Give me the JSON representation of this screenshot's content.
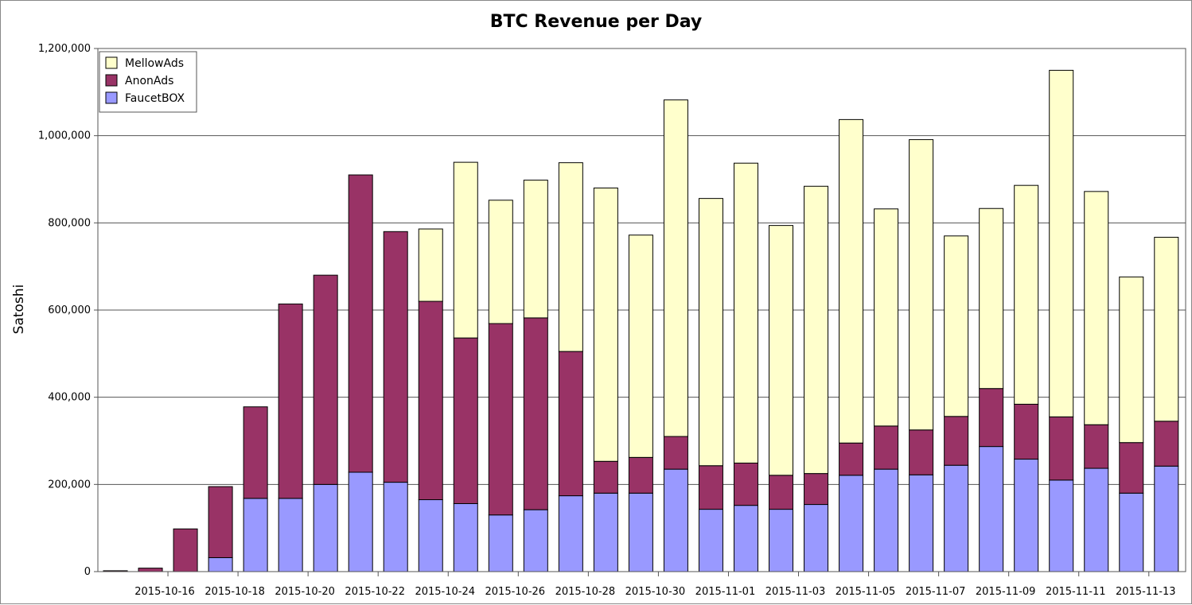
{
  "chart_data": {
    "type": "bar",
    "stacked": true,
    "title": "BTC Revenue per Day",
    "xlabel": "",
    "ylabel": "Satoshi",
    "ylim": [
      0,
      1200000
    ],
    "yticks": [
      0,
      200000,
      400000,
      600000,
      800000,
      1000000,
      1200000
    ],
    "ytick_labels": [
      "0",
      "200,000",
      "400,000",
      "600,000",
      "800,000",
      "1,000,000",
      "1,200,000"
    ],
    "grid": true,
    "legend_position": "top-left",
    "categories": [
      "2015-10-15",
      "2015-10-16",
      "2015-10-17",
      "2015-10-18",
      "2015-10-19",
      "2015-10-20",
      "2015-10-21",
      "2015-10-22",
      "2015-10-23",
      "2015-10-24",
      "2015-10-25",
      "2015-10-26",
      "2015-10-27",
      "2015-10-28",
      "2015-10-29",
      "2015-10-30",
      "2015-10-31",
      "2015-11-01",
      "2015-11-02",
      "2015-11-03",
      "2015-11-04",
      "2015-11-05",
      "2015-11-06",
      "2015-11-07",
      "2015-11-08",
      "2015-11-09",
      "2015-11-10",
      "2015-11-11",
      "2015-11-12",
      "2015-11-13",
      "2015-11-14"
    ],
    "x_tick_labels": [
      "2015-10-16",
      "2015-10-18",
      "2015-10-20",
      "2015-10-22",
      "2015-10-24",
      "2015-10-26",
      "2015-10-28",
      "2015-10-30",
      "2015-11-01",
      "2015-11-03",
      "2015-11-05",
      "2015-11-07",
      "2015-11-09",
      "2015-11-11",
      "2015-11-13"
    ],
    "series": [
      {
        "name": "FaucetBOX",
        "color": "#9999ff",
        "values": [
          0,
          0,
          0,
          32000,
          168000,
          168000,
          200000,
          228000,
          205000,
          165000,
          156000,
          130000,
          142000,
          174000,
          180000,
          180000,
          235000,
          143000,
          152000,
          143000,
          154000,
          221000,
          235000,
          222000,
          244000,
          287000,
          258000,
          210000,
          237000,
          180000,
          242000
        ]
      },
      {
        "name": "AnonAds",
        "color": "#993366",
        "values": [
          2000,
          8000,
          98000,
          163000,
          210000,
          446000,
          480000,
          682000,
          575000,
          455000,
          380000,
          439000,
          440000,
          331000,
          73000,
          82000,
          75000,
          100000,
          97000,
          78000,
          71000,
          74000,
          99000,
          103000,
          112000,
          133000,
          126000,
          145000,
          100000,
          116000,
          103000
        ]
      },
      {
        "name": "MellowAds",
        "color": "#ffffcc",
        "values": [
          0,
          0,
          0,
          0,
          0,
          0,
          0,
          0,
          0,
          166000,
          403000,
          283000,
          316000,
          433000,
          627000,
          510000,
          772000,
          613000,
          688000,
          573000,
          659000,
          742000,
          498000,
          666000,
          414000,
          413000,
          502000,
          795000,
          535000,
          380000,
          422000
        ]
      }
    ]
  }
}
